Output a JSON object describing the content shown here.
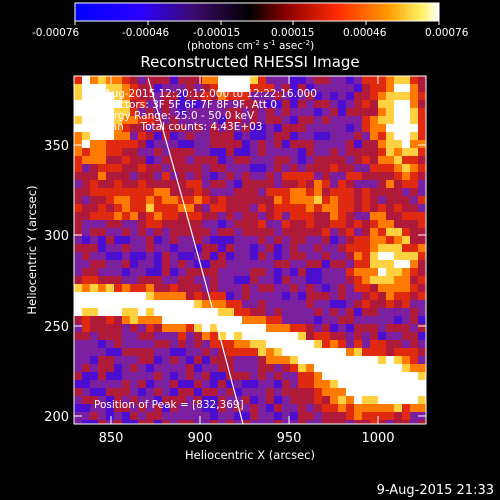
{
  "colorbar": {
    "ticks": [
      "-0.00076",
      "-0.00046",
      "-0.00015",
      "0.00015",
      "0.00046",
      "0.00076"
    ],
    "units_main": "(photons cm",
    "units_exp1": "-2",
    "units_mid": " s",
    "units_exp2": "-1",
    "units_end": " asec",
    "units_exp3": "-2",
    "units_close": ")"
  },
  "plot": {
    "title": "Reconstructed RHESSI Image",
    "xlabel": "Heliocentric X (arcsec)",
    "ylabel": "Heliocentric Y (arcsec)",
    "xticks": [
      "850",
      "900",
      "950",
      "1000"
    ],
    "yticks": [
      "350",
      "300",
      "250",
      "200"
    ],
    "info": {
      "line1": "9-Aug-2015 12:20:12.000 to 12:22:16.000",
      "line2": "Detectors: 3F 5F 6F 7F 8F 9F, Att 0",
      "line3": "Energy Range: 25.0 - 50.0 keV",
      "line4": "Clean     Total counts: 4.43E+03"
    },
    "peak_label": "Position of Peak = [832,369]"
  },
  "footer": {
    "timestamp": "9-Aug-2015 21:33"
  },
  "colors": {
    "background": "#000000",
    "colormap": [
      "#0000ff",
      "#4b0dcf",
      "#7a1f9e",
      "#b01a3a",
      "#e02a10",
      "#ff7a00",
      "#ffd040",
      "#ffffff"
    ]
  }
}
